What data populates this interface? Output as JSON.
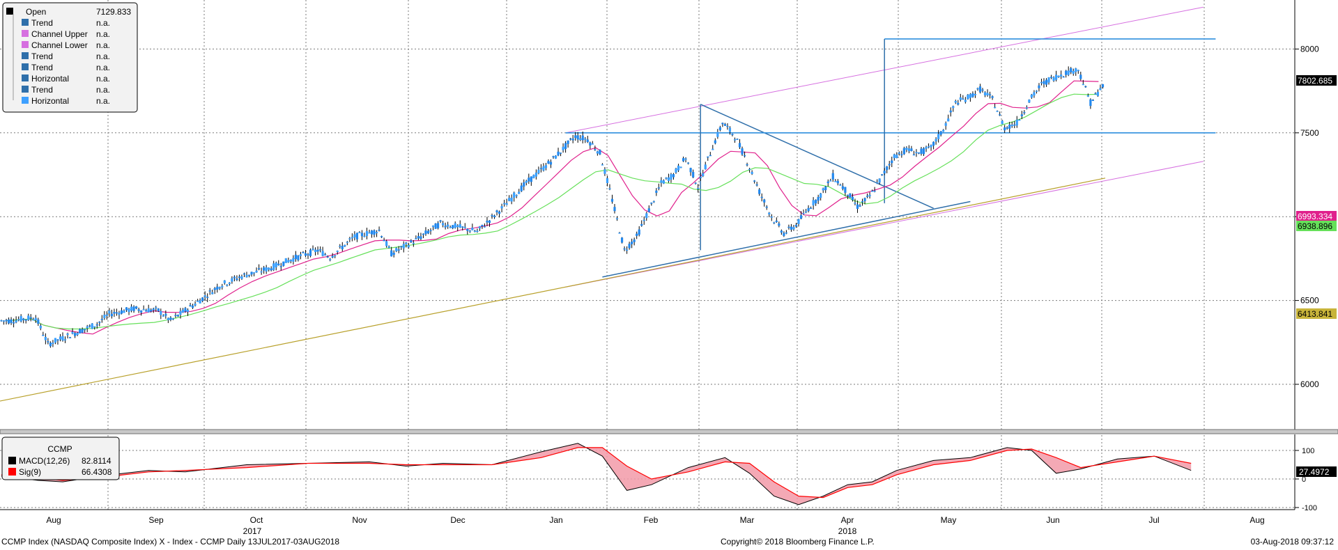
{
  "legend_main": {
    "rows": [
      {
        "label": "Open",
        "value": "7129.833",
        "color": "#000000"
      },
      {
        "label": "Trend",
        "value": "n.a.",
        "color": "#2f6faa"
      },
      {
        "label": "Channel Upper",
        "value": "n.a.",
        "color": "#d66fe0"
      },
      {
        "label": "Channel Lower",
        "value": "n.a.",
        "color": "#d66fe0"
      },
      {
        "label": "Trend",
        "value": "n.a.",
        "color": "#2f6faa"
      },
      {
        "label": "Trend",
        "value": "n.a.",
        "color": "#2f6faa"
      },
      {
        "label": "Horizontal",
        "value": "n.a.",
        "color": "#2f6faa"
      },
      {
        "label": "Trend",
        "value": "n.a.",
        "color": "#2f6faa"
      },
      {
        "label": "Horizontal",
        "value": "n.a.",
        "color": "#3ea0ff"
      }
    ]
  },
  "legend_macd": {
    "title": "CCMP",
    "rows": [
      {
        "label": "MACD(12,26)",
        "value": "82.8114",
        "color": "#000000"
      },
      {
        "label": "Sig(9)",
        "value": "66.4308",
        "color": "#ff0000"
      }
    ]
  },
  "price_tags": [
    {
      "label": "7802.685",
      "value": 7802.685,
      "bg": "#000000",
      "fg": "#ffffff"
    },
    {
      "label": "6993.334",
      "value": 6993.334,
      "bg": "#e0208c",
      "fg": "#ffffff"
    },
    {
      "label": "6938.896",
      "value": 6938.896,
      "bg": "#66e05a",
      "fg": "#000000"
    },
    {
      "label": "6413.841",
      "value": 6413.841,
      "bg": "#c8b43a",
      "fg": "#000000"
    }
  ],
  "macd_tag": {
    "label": "27.4972",
    "bg": "#000000",
    "fg": "#ffffff"
  },
  "footer": {
    "left": "CCMP Index (NASDAQ Composite Index) X - Index - CCMP  Daily 13JUL2017-03AUG2018",
    "center": "Copyright© 2018 Bloomberg Finance L.P.",
    "right": "03-Aug-2018 09:37:12"
  },
  "colors": {
    "up": "#3aa0ff",
    "down": "#2288ee",
    "ma_fast": "#e0208c",
    "ma_mid": "#66e05a",
    "ma_slow": "#b8a02a",
    "channel": "#d66fe0",
    "trend": "#2f6faa",
    "horizontal": "#2e8fde",
    "macd": "#000000",
    "signal": "#ff0000",
    "fill": "#f29aa8"
  },
  "chart_data": {
    "type": "candlestick",
    "title": "",
    "x_ticks": [
      {
        "label": "Aug",
        "year": ""
      },
      {
        "label": "Sep",
        "year": ""
      },
      {
        "label": "Oct",
        "year": "2017"
      },
      {
        "label": "Nov",
        "year": ""
      },
      {
        "label": "Dec",
        "year": ""
      },
      {
        "label": "Jan",
        "year": ""
      },
      {
        "label": "Feb",
        "year": ""
      },
      {
        "label": "Mar",
        "year": ""
      },
      {
        "label": "Apr",
        "year": "2018"
      },
      {
        "label": "May",
        "year": ""
      },
      {
        "label": "Jun",
        "year": ""
      },
      {
        "label": "Jul",
        "year": ""
      },
      {
        "label": "Aug",
        "year": ""
      }
    ],
    "y_ticks": [
      6000,
      6500,
      7000,
      7500,
      8000
    ],
    "ylim": [
      5700,
      8250
    ],
    "macd_ticks": [
      100,
      0,
      -100
    ],
    "macd_ylim": [
      -115,
      135
    ],
    "close_path": [
      {
        "week": 0,
        "close": 6380
      },
      {
        "week": 2,
        "close": 6400
      },
      {
        "week": 3,
        "close": 6240
      },
      {
        "week": 5,
        "close": 6300
      },
      {
        "week": 7,
        "close": 6360
      },
      {
        "week": 8,
        "close": 6420
      },
      {
        "week": 10,
        "close": 6450
      },
      {
        "week": 12,
        "close": 6440
      },
      {
        "week": 13,
        "close": 6380
      },
      {
        "week": 15,
        "close": 6480
      },
      {
        "week": 17,
        "close": 6590
      },
      {
        "week": 19,
        "close": 6650
      },
      {
        "week": 21,
        "close": 6690
      },
      {
        "week": 23,
        "close": 6750
      },
      {
        "week": 25,
        "close": 6800
      },
      {
        "week": 26,
        "close": 6760
      },
      {
        "week": 28,
        "close": 6880
      },
      {
        "week": 30,
        "close": 6920
      },
      {
        "week": 31,
        "close": 6780
      },
      {
        "week": 33,
        "close": 6860
      },
      {
        "week": 35,
        "close": 6960
      },
      {
        "week": 37,
        "close": 6930
      },
      {
        "week": 38,
        "close": 6910
      },
      {
        "week": 40,
        "close": 7050
      },
      {
        "week": 42,
        "close": 7200
      },
      {
        "week": 44,
        "close": 7330
      },
      {
        "week": 46,
        "close": 7480
      },
      {
        "week": 47,
        "close": 7460
      },
      {
        "week": 48,
        "close": 7380
      },
      {
        "week": 49,
        "close": 7100
      },
      {
        "week": 50,
        "close": 6800
      },
      {
        "week": 51,
        "close": 6880
      },
      {
        "week": 53,
        "close": 7200
      },
      {
        "week": 54,
        "close": 7250
      },
      {
        "week": 55,
        "close": 7350
      },
      {
        "week": 56,
        "close": 7180
      },
      {
        "week": 57,
        "close": 7380
      },
      {
        "week": 58,
        "close": 7560
      },
      {
        "week": 59,
        "close": 7480
      },
      {
        "week": 60,
        "close": 7330
      },
      {
        "week": 61,
        "close": 7150
      },
      {
        "week": 62,
        "close": 7000
      },
      {
        "week": 63,
        "close": 6900
      },
      {
        "week": 64,
        "close": 6950
      },
      {
        "week": 65,
        "close": 7050
      },
      {
        "week": 66,
        "close": 7130
      },
      {
        "week": 67,
        "close": 7240
      },
      {
        "week": 68,
        "close": 7160
      },
      {
        "week": 69,
        "close": 7060
      },
      {
        "week": 70,
        "close": 7120
      },
      {
        "week": 71,
        "close": 7240
      },
      {
        "week": 72,
        "close": 7360
      },
      {
        "week": 73,
        "close": 7400
      },
      {
        "week": 74,
        "close": 7380
      },
      {
        "week": 75,
        "close": 7410
      },
      {
        "week": 76,
        "close": 7520
      },
      {
        "week": 77,
        "close": 7680
      },
      {
        "week": 78,
        "close": 7710
      },
      {
        "week": 79,
        "close": 7760
      },
      {
        "week": 80,
        "close": 7700
      },
      {
        "week": 81,
        "close": 7530
      },
      {
        "week": 82,
        "close": 7560
      },
      {
        "week": 83,
        "close": 7690
      },
      {
        "week": 84,
        "close": 7790
      },
      {
        "week": 85,
        "close": 7830
      },
      {
        "week": 86,
        "close": 7860
      },
      {
        "week": 87,
        "close": 7880
      },
      {
        "week": 88,
        "close": 7680
      },
      {
        "week": 89,
        "close": 7780
      }
    ],
    "moving_averages": [
      {
        "name": "",
        "color": "#e0208c",
        "period_weeks": 4,
        "last": 6993.334
      },
      {
        "name": "",
        "color": "#66e05a",
        "period_weeks": 9,
        "last": 6938.896
      },
      {
        "name": "",
        "color": "#b8a02a",
        "period_weeks": 40,
        "last": 6413.841
      }
    ],
    "trendlines": [
      {
        "kind": "channel-upper",
        "points": [
          {
            "week": 46,
            "close": 7500
          },
          {
            "week": 98,
            "close": 8250
          }
        ]
      },
      {
        "kind": "channel-lower",
        "points": [
          {
            "week": 46,
            "close": 6580
          },
          {
            "week": 98,
            "close": 7330
          }
        ]
      },
      {
        "kind": "triangle-top",
        "points": [
          {
            "week": 57,
            "close": 7670
          },
          {
            "week": 76,
            "close": 7050
          }
        ]
      },
      {
        "kind": "triangle-bottom",
        "points": [
          {
            "week": 49,
            "close": 6640
          },
          {
            "week": 79,
            "close": 7090
          }
        ]
      },
      {
        "kind": "horizontal",
        "points": [
          {
            "week": 46,
            "close": 7500
          },
          {
            "week": 99,
            "close": 7500
          }
        ]
      },
      {
        "kind": "horizontal",
        "points": [
          {
            "week": 72,
            "close": 8060
          },
          {
            "week": 99,
            "close": 8060
          }
        ]
      }
    ],
    "macd": [
      {
        "week": 0,
        "macd": 10,
        "signal": 15
      },
      {
        "week": 3,
        "macd": -5,
        "signal": 5
      },
      {
        "week": 5,
        "macd": -10,
        "signal": -5
      },
      {
        "week": 8,
        "macd": 10,
        "signal": 5
      },
      {
        "week": 12,
        "macd": 30,
        "signal": 25
      },
      {
        "week": 15,
        "macd": 25,
        "signal": 30
      },
      {
        "week": 20,
        "macd": 50,
        "signal": 40
      },
      {
        "week": 25,
        "macd": 55,
        "signal": 55
      },
      {
        "week": 30,
        "macd": 60,
        "signal": 55
      },
      {
        "week": 33,
        "macd": 45,
        "signal": 50
      },
      {
        "week": 36,
        "macd": 55,
        "signal": 50
      },
      {
        "week": 40,
        "macd": 50,
        "signal": 50
      },
      {
        "week": 44,
        "macd": 95,
        "signal": 75
      },
      {
        "week": 47,
        "macd": 125,
        "signal": 110
      },
      {
        "week": 49,
        "macd": 80,
        "signal": 110
      },
      {
        "week": 51,
        "macd": -40,
        "signal": 45
      },
      {
        "week": 53,
        "macd": -20,
        "signal": 0
      },
      {
        "week": 56,
        "macd": 40,
        "signal": 25
      },
      {
        "week": 59,
        "macd": 75,
        "signal": 60
      },
      {
        "week": 61,
        "macd": 20,
        "signal": 55
      },
      {
        "week": 63,
        "macd": -60,
        "signal": -10
      },
      {
        "week": 65,
        "macd": -90,
        "signal": -60
      },
      {
        "week": 67,
        "macd": -60,
        "signal": -65
      },
      {
        "week": 69,
        "macd": -20,
        "signal": -30
      },
      {
        "week": 71,
        "macd": -10,
        "signal": -20
      },
      {
        "week": 73,
        "macd": 30,
        "signal": 15
      },
      {
        "week": 76,
        "macd": 65,
        "signal": 50
      },
      {
        "week": 79,
        "macd": 75,
        "signal": 65
      },
      {
        "week": 82,
        "macd": 110,
        "signal": 100
      },
      {
        "week": 84,
        "macd": 100,
        "signal": 105
      },
      {
        "week": 86,
        "macd": 20,
        "signal": 75
      },
      {
        "week": 88,
        "macd": 35,
        "signal": 40
      },
      {
        "week": 91,
        "macd": 70,
        "signal": 60
      },
      {
        "week": 94,
        "macd": 80,
        "signal": 80
      },
      {
        "week": 97,
        "macd": 30,
        "signal": 55
      }
    ]
  }
}
